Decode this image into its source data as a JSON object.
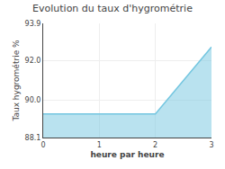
{
  "chart_data": {
    "type": "area",
    "title": "Evolution du taux d'hygrométrie",
    "xlabel": "heure par heure",
    "ylabel": "Taux hygrométrie %",
    "x": [
      0,
      2,
      2,
      3
    ],
    "values": [
      89.3,
      89.3,
      89.3,
      92.7
    ],
    "color": "#74c6e0",
    "xlim": [
      0,
      3
    ],
    "ylim": [
      88.1,
      93.9
    ],
    "xticks": [
      0,
      1,
      2,
      3
    ],
    "yticks": [
      88.1,
      {
        "value": 90,
        "label": "90.0"
      },
      {
        "value": 92,
        "label": "92.0"
      },
      93.9
    ],
    "grid": true
  }
}
